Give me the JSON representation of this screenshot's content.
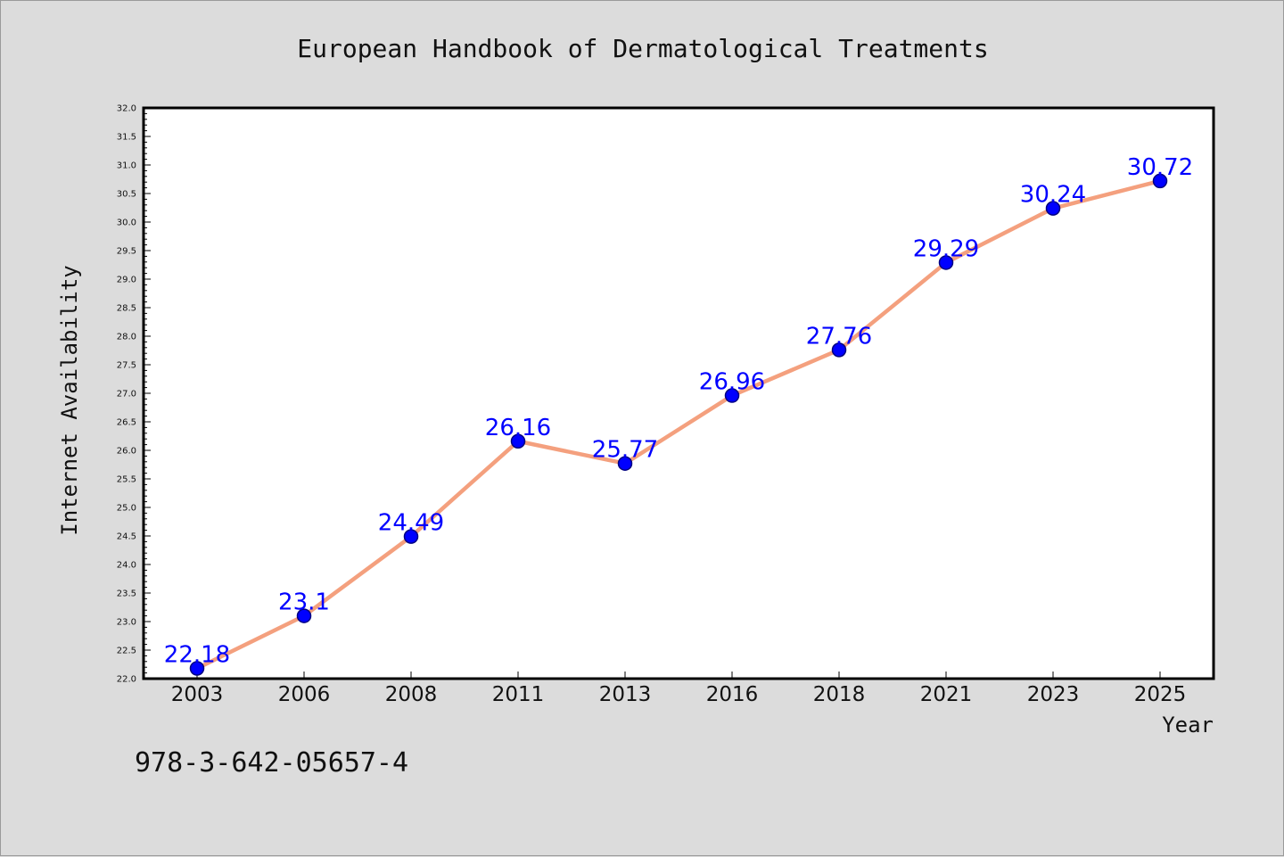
{
  "chart_data": {
    "type": "line",
    "title": "European Handbook of Dermatological Treatments",
    "xlabel": "Year",
    "ylabel": "Internet Availability",
    "categories": [
      "2003",
      "2006",
      "2008",
      "2011",
      "2013",
      "2016",
      "2018",
      "2021",
      "2023",
      "2025"
    ],
    "values": [
      22.18,
      23.1,
      24.49,
      26.16,
      25.77,
      26.96,
      27.76,
      29.29,
      30.24,
      30.72
    ],
    "value_labels": [
      "22.18",
      "23.1",
      "24.49",
      "26.16",
      "25.77",
      "26.96",
      "27.76",
      "29.29",
      "30.24",
      "30.72"
    ],
    "ylim": [
      22.0,
      32.0
    ],
    "yticks": [
      "22.0",
      "22.5",
      "23.0",
      "23.5",
      "24.0",
      "24.5",
      "25.0",
      "25.5",
      "26.0",
      "26.5",
      "27.0",
      "27.5",
      "28.0",
      "28.5",
      "29.0",
      "29.5",
      "30.0",
      "30.5",
      "31.0",
      "31.5",
      "32.0"
    ],
    "grid": false,
    "legend": "none",
    "colors": {
      "line": "#f4a07e",
      "marker": "#0000ff",
      "marker_edge": "#000080",
      "label": "#0000ff",
      "background": "#dcdcdc",
      "plot_bg": "#ffffff"
    }
  },
  "footer": {
    "isbn": "978-3-642-05657-4"
  }
}
